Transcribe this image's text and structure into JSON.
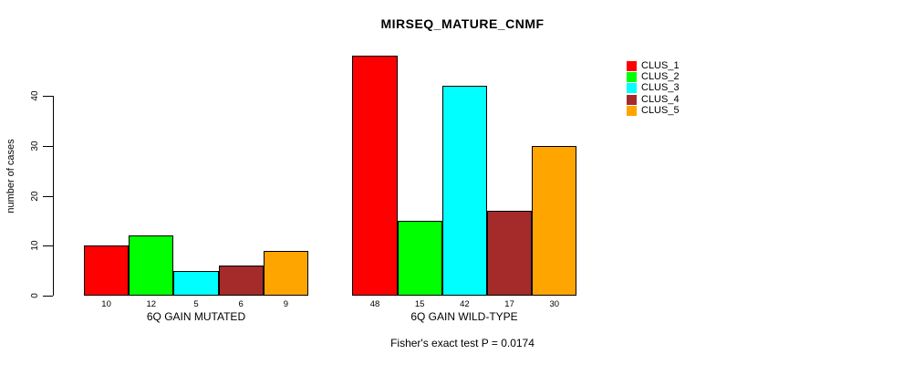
{
  "chart_data": {
    "type": "bar",
    "title": "MIRSEQ_MATURE_CNMF",
    "ylabel": "number of cases",
    "xlabel": "",
    "categories": [
      "6Q GAIN MUTATED",
      "6Q GAIN WILD-TYPE"
    ],
    "series": [
      {
        "name": "CLUS_1",
        "color": "#FF0000",
        "values": [
          10,
          48
        ]
      },
      {
        "name": "CLUS_2",
        "color": "#00FF00",
        "values": [
          12,
          15
        ]
      },
      {
        "name": "CLUS_3",
        "color": "#00FFFF",
        "values": [
          5,
          42
        ]
      },
      {
        "name": "CLUS_4",
        "color": "#A52A2A",
        "values": [
          6,
          17
        ]
      },
      {
        "name": "CLUS_5",
        "color": "#FFA500",
        "values": [
          9,
          30
        ]
      }
    ],
    "yticks": [
      0,
      10,
      20,
      30,
      40
    ],
    "ylim": [
      0,
      48
    ],
    "grid": false,
    "bar_value_labels_shown": true,
    "legend_position": "top-right",
    "annotation": "Fisher's exact test P = 0.0174"
  }
}
